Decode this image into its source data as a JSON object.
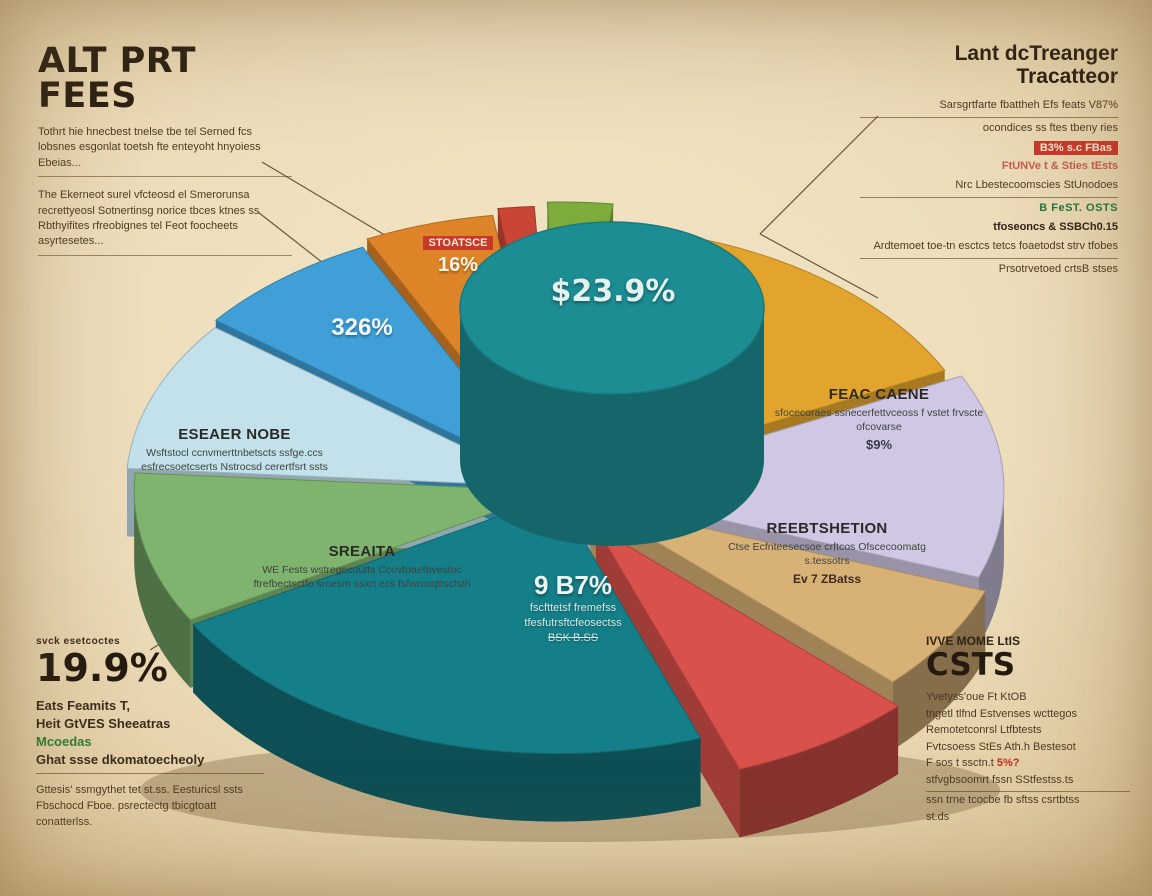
{
  "page": {
    "background": "#ecdcba"
  },
  "header": {
    "title": "ALT PRT FEES",
    "para1": "Tothrt hie hnecbest tnelse tbe tel Serned fcs lobsnes esgonlat toetsh fte enteyoht hnyoiess Ebeias...",
    "para2": "The Ekerneot surel vfcteosd el Smerorunsa recrettyeosl Sotnertinsg norice tbces ktnes ss Rbthyifites rfreobignes tel Feot foocheets asyrtesetes..."
  },
  "top_right": {
    "heading": "Lant dcTreanger Tracatteor",
    "line1": "Sarsgrtfarte fbattheh Efs feats V87%",
    "line2": "ocondices ss ftes tbeny ries",
    "red_tag": "B3% s.c FBas",
    "pink_line": "FtUNVe t & Sties tEsts",
    "line3": "Nrc Lbestecoomscies StUnodoes",
    "green_line": "B FeST. OSTS",
    "bold_line": "tfoseoncs & SSBCh0.15",
    "line4": "Ardtemoet toe-tn esctcs tetcs foaetodst strv tfobes",
    "line5": "Prsotrvetoed crtsB stses"
  },
  "bottom_left": {
    "small_heading": "svck esetcoctes",
    "big_pct": "19.9%",
    "line1": "Eats Feamits T,",
    "line2": "Heit GtVES Sheeatras",
    "line3": "Mcoedas",
    "line4": "Ghat ssse dkomatoecheoly",
    "para": "Gttesis' ssmgythet tet st.ss. Eesturicsl ssts Fbschocd Fboe. psrectectg tbicgtoatt conatterlss."
  },
  "bottom_right": {
    "small_heading": "IVVE MOME LtIS",
    "big_heading": "CSTS",
    "line1": "Yvetyss'oue Ft KtOB",
    "line2": "tngetl tlfnd Estvenses wcttegos",
    "line3": "Remotetconrsl Ltfbtests",
    "line4": "Fvtcsoess StEs Ath.h Bestesot",
    "line5": "F sos t ssctn.t ",
    "red_pct": "5%?",
    "line6": "stfvgbsoomrt fssn SStfestss.ts",
    "line7": "ssn trne tcocbe fb sftss csrtbtss",
    "line8": "st.ds"
  },
  "annotations": {
    "eseaer": {
      "heading": "ESEAER NOBE",
      "body": "Wsftstocl ccnvmerttnbetscts ssfge.ccs esfrecsoetcserts Nstrocsd cerertfsrt ssts"
    },
    "sreaita": {
      "heading": "SREAITA",
      "body": "WE Fests wstregecoutts Ccovtoaetbvestoc ftrefbectsctfo srnesm ssxrt ecs fsfwrcoqttscfsth"
    },
    "feac": {
      "heading": "FEAC CAENE",
      "body": "sfocecoraes ssnecerfettvceoss f vstet frvscte ofcovarse",
      "pct": "$9%"
    },
    "reebt": {
      "heading": "REEBTSHETION",
      "body": "Ctse Ecfnteesecsoe crftcos Ofscecoomatg s.tessotrs",
      "tail": "Ev 7 ZBatss"
    },
    "teal": {
      "line1": "fscfttetsf fremefss",
      "line2": "tfesfutrsftcfeosectss",
      "line3": "BSK B.SS"
    }
  },
  "chart_data": {
    "type": "pie",
    "title": "ALT PRT FEES",
    "style": "3d exploded pie with raised teal cylinder at center",
    "legend": "none",
    "center_slice": {
      "label": "$23.9%",
      "color": "#1d8d94"
    },
    "slices": [
      {
        "name": "gold",
        "color": "#e2a42c",
        "start": -80,
        "sweep": 54,
        "explode": 8,
        "label": ""
      },
      {
        "name": "lavender",
        "color": "#cfc7e3",
        "start": -26,
        "sweep": 46,
        "explode": 16,
        "label": ""
      },
      {
        "name": "tan",
        "color": "#d7b176",
        "start": 20,
        "sweep": 24,
        "explode": 24,
        "label": ""
      },
      {
        "name": "red",
        "color": "#d8514a",
        "start": 44,
        "sweep": 26,
        "explode": 44,
        "label": ""
      },
      {
        "name": "teal",
        "color": "#157f89",
        "start": 70,
        "sweep": 80,
        "explode": 6,
        "label": "9 B7%"
      },
      {
        "name": "green",
        "color": "#7eb46e",
        "start": 150,
        "sweep": 34,
        "explode": 4,
        "label": ""
      },
      {
        "name": "light-blue",
        "color": "#c2e1eb",
        "start": 184,
        "sweep": 34,
        "explode": 10,
        "label": ""
      },
      {
        "name": "blue",
        "color": "#3f9fd6",
        "start": 218,
        "sweep": 26,
        "explode": 14,
        "label": "326%"
      },
      {
        "name": "orange",
        "color": "#dd8428",
        "start": 244,
        "sweep": 18,
        "explode": 20,
        "label": "16%",
        "tag": "STOATSCE"
      },
      {
        "name": "red-sliver",
        "color": "#c94636",
        "start": 262,
        "sweep": 5,
        "explode": 26,
        "label": ""
      },
      {
        "name": "green-sliver",
        "color": "#7dac3c",
        "start": 268,
        "sweep": 9,
        "explode": 30,
        "label": ""
      }
    ]
  }
}
